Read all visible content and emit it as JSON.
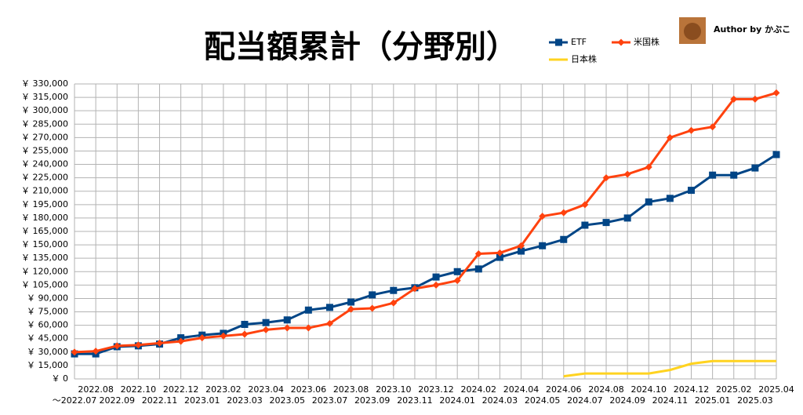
{
  "chart_data": {
    "type": "line",
    "title": "配当額累計（分野別）",
    "author": "Author by かぶこ",
    "categories": [
      "～2022.07",
      "2022.08",
      "2022.09",
      "2022.10",
      "2022.11",
      "2022.12",
      "2023.01",
      "2023.02",
      "2023.03",
      "2023.04",
      "2023.05",
      "2023.06",
      "2023.07",
      "2023.08",
      "2023.09",
      "2023.10",
      "2023.11",
      "2023.12",
      "2024.01",
      "2024.02",
      "2024.03",
      "2024.04",
      "2024.05",
      "2024.06",
      "2024.07",
      "2024.08",
      "2024.09",
      "2024.10",
      "2024.11",
      "2024.12",
      "2025.01",
      "2025.02",
      "2025.03",
      "2025.04"
    ],
    "series": [
      {
        "name": "ETF",
        "color": "#004586",
        "marker": "square",
        "values": [
          28000,
          28000,
          36000,
          37000,
          39000,
          46000,
          49000,
          51000,
          61000,
          63000,
          66000,
          77000,
          80000,
          86000,
          94000,
          99000,
          102000,
          114000,
          120000,
          123000,
          136000,
          143000,
          149000,
          156000,
          172000,
          175000,
          180000,
          198000,
          202000,
          211000,
          228000,
          228000,
          236000,
          251000
        ]
      },
      {
        "name": "米国株",
        "color": "#ff420e",
        "marker": "diamond",
        "values": [
          30000,
          31000,
          37000,
          38000,
          40000,
          42000,
          46000,
          48000,
          50000,
          55000,
          57000,
          57000,
          62000,
          78000,
          79000,
          85000,
          101000,
          105000,
          110000,
          140000,
          141000,
          149000,
          182000,
          186000,
          195000,
          225000,
          229000,
          237000,
          270000,
          278000,
          282000,
          313000,
          313000,
          320000
        ]
      },
      {
        "name": "日本株",
        "color": "#ffd320",
        "marker": "none",
        "values": [
          null,
          null,
          null,
          null,
          null,
          null,
          null,
          null,
          null,
          null,
          null,
          null,
          null,
          null,
          null,
          null,
          null,
          null,
          null,
          null,
          null,
          null,
          null,
          3000,
          6000,
          6000,
          6000,
          6000,
          10000,
          17000,
          20000,
          20000,
          20000,
          20000
        ]
      }
    ],
    "ylim": [
      0,
      330000
    ],
    "yticks": [
      {
        "value": 0,
        "label": "￥ 0"
      },
      {
        "value": 15000,
        "label": "￥ 15,000"
      },
      {
        "value": 30000,
        "label": "￥ 30,000"
      },
      {
        "value": 45000,
        "label": "￥ 45,000"
      },
      {
        "value": 60000,
        "label": "￥ 60,000"
      },
      {
        "value": 75000,
        "label": "￥ 75,000"
      },
      {
        "value": 90000,
        "label": "￥ 90,000"
      },
      {
        "value": 105000,
        "label": "￥ 105,000"
      },
      {
        "value": 120000,
        "label": "￥ 120,000"
      },
      {
        "value": 135000,
        "label": "￥ 135,000"
      },
      {
        "value": 150000,
        "label": "￥ 150,000"
      },
      {
        "value": 165000,
        "label": "￥ 165,000"
      },
      {
        "value": 180000,
        "label": "￥ 180,000"
      },
      {
        "value": 195000,
        "label": "￥ 195,000"
      },
      {
        "value": 210000,
        "label": "￥ 210,000"
      },
      {
        "value": 225000,
        "label": "￥ 225,000"
      },
      {
        "value": 240000,
        "label": "￥ 240,000"
      },
      {
        "value": 255000,
        "label": "￥ 255,000"
      },
      {
        "value": 270000,
        "label": "￥ 270,000"
      },
      {
        "value": 285000,
        "label": "￥ 285,000"
      },
      {
        "value": 300000,
        "label": "￥ 300,000"
      },
      {
        "value": 315000,
        "label": "￥ 315,000"
      },
      {
        "value": 330000,
        "label": "￥ 330,000"
      }
    ],
    "grid": true
  }
}
